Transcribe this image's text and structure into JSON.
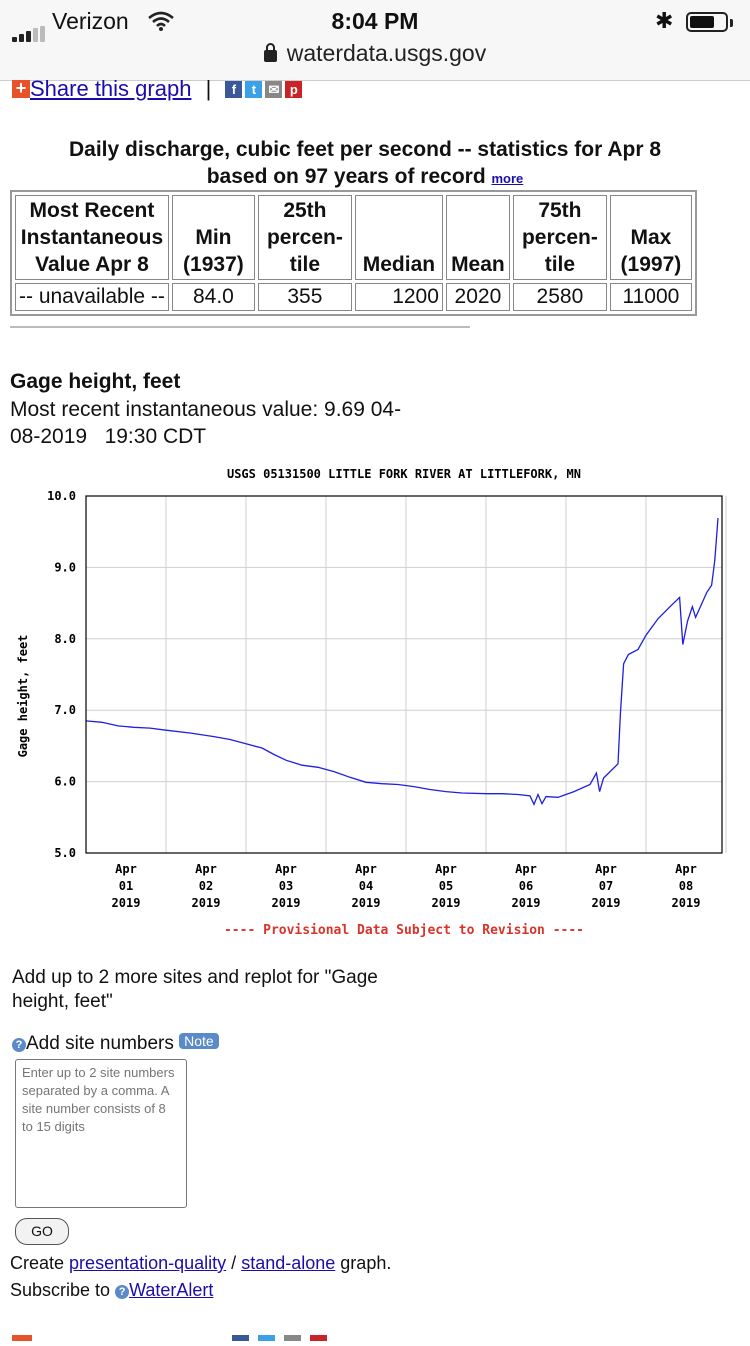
{
  "status_bar": {
    "carrier": "Verizon",
    "time": "8:04 PM",
    "url": "waterdata.usgs.gov"
  },
  "share": {
    "label": "Share this graph",
    "separator": "|"
  },
  "stats": {
    "title_line1": "Daily discharge, cubic feet per second -- statistics for Apr 8",
    "title_line2": "based on 97 years of record",
    "more_link": "more",
    "headers": [
      [
        "Most Recent",
        "Instantaneous",
        "Value Apr 8"
      ],
      [
        "Min",
        "(1937)"
      ],
      [
        "25th",
        "percen-",
        "tile"
      ],
      [
        "Median"
      ],
      [
        "Mean"
      ],
      [
        "75th",
        "percen-",
        "tile"
      ],
      [
        "Max",
        "(1997)"
      ]
    ],
    "values": [
      "-- unavailable --",
      "84.0",
      "355",
      "1200",
      "2020",
      "2580",
      "11000"
    ]
  },
  "gage": {
    "title": "Gage height, feet",
    "recent_line1": "Most recent instantaneous value: 9.69 04-",
    "recent_line2": "08-2019   19:30 CDT"
  },
  "chart_data": {
    "type": "line",
    "title": "USGS 05131500 LITTLE FORK RIVER AT LITTLEFORK, MN",
    "ylabel": "Gage height, feet",
    "ylim": [
      5.0,
      10.0
    ],
    "yticks": [
      "10.0",
      "9.0",
      "8.0",
      "7.0",
      "6.0",
      "5.0"
    ],
    "xticks": [
      [
        "Apr",
        "01",
        "2019"
      ],
      [
        "Apr",
        "02",
        "2019"
      ],
      [
        "Apr",
        "03",
        "2019"
      ],
      [
        "Apr",
        "04",
        "2019"
      ],
      [
        "Apr",
        "05",
        "2019"
      ],
      [
        "Apr",
        "06",
        "2019"
      ],
      [
        "Apr",
        "07",
        "2019"
      ],
      [
        "Apr",
        "08",
        "2019"
      ]
    ],
    "xlim_days": [
      0.0,
      7.95
    ],
    "footnote": "---- Provisional Data Subject to Revision ----",
    "grid": true,
    "line_color": "#1f1fe0",
    "series": [
      {
        "points": [
          [
            0,
            6.85
          ],
          [
            0.2,
            6.83
          ],
          [
            0.4,
            6.78
          ],
          [
            0.6,
            6.76
          ],
          [
            0.8,
            6.75
          ],
          [
            1.0,
            6.72
          ],
          [
            1.3,
            6.68
          ],
          [
            1.6,
            6.63
          ],
          [
            1.8,
            6.59
          ],
          [
            2.0,
            6.53
          ],
          [
            2.2,
            6.47
          ],
          [
            2.35,
            6.38
          ],
          [
            2.5,
            6.3
          ],
          [
            2.7,
            6.23
          ],
          [
            2.9,
            6.2
          ],
          [
            3.1,
            6.14
          ],
          [
            3.3,
            6.06
          ],
          [
            3.5,
            5.99
          ],
          [
            3.7,
            5.97
          ],
          [
            3.9,
            5.96
          ],
          [
            4.1,
            5.93
          ],
          [
            4.3,
            5.89
          ],
          [
            4.5,
            5.86
          ],
          [
            4.7,
            5.84
          ],
          [
            5.0,
            5.83
          ],
          [
            5.2,
            5.83
          ],
          [
            5.4,
            5.82
          ],
          [
            5.55,
            5.8
          ],
          [
            5.6,
            5.68
          ],
          [
            5.65,
            5.82
          ],
          [
            5.7,
            5.69
          ],
          [
            5.75,
            5.79
          ],
          [
            5.9,
            5.78
          ],
          [
            6.1,
            5.86
          ],
          [
            6.3,
            5.96
          ],
          [
            6.38,
            6.12
          ],
          [
            6.42,
            5.86
          ],
          [
            6.47,
            6.05
          ],
          [
            6.65,
            6.25
          ],
          [
            6.68,
            6.95
          ],
          [
            6.72,
            7.65
          ],
          [
            6.78,
            7.78
          ],
          [
            6.9,
            7.85
          ],
          [
            7.0,
            8.05
          ],
          [
            7.15,
            8.28
          ],
          [
            7.3,
            8.45
          ],
          [
            7.42,
            8.58
          ],
          [
            7.46,
            7.92
          ],
          [
            7.52,
            8.25
          ],
          [
            7.58,
            8.45
          ],
          [
            7.62,
            8.3
          ],
          [
            7.7,
            8.5
          ],
          [
            7.76,
            8.65
          ],
          [
            7.82,
            8.75
          ],
          [
            7.86,
            9.1
          ],
          [
            7.9,
            9.69
          ]
        ]
      }
    ]
  },
  "addsites": {
    "text": "Add up to 2 more sites and replot for \"Gage height, feet\"",
    "label": "Add site numbers",
    "note": "Note",
    "placeholder": "Enter up to 2 site numbers separated by a comma. A site number consists of 8 to 15 digits",
    "go": "GO"
  },
  "create": {
    "prefix": "Create",
    "link1": "presentation-quality",
    "sep": "/",
    "link2": "stand-alone",
    "suffix": "graph."
  },
  "subscribe": {
    "prefix": "Subscribe to",
    "link": "WaterAlert"
  }
}
